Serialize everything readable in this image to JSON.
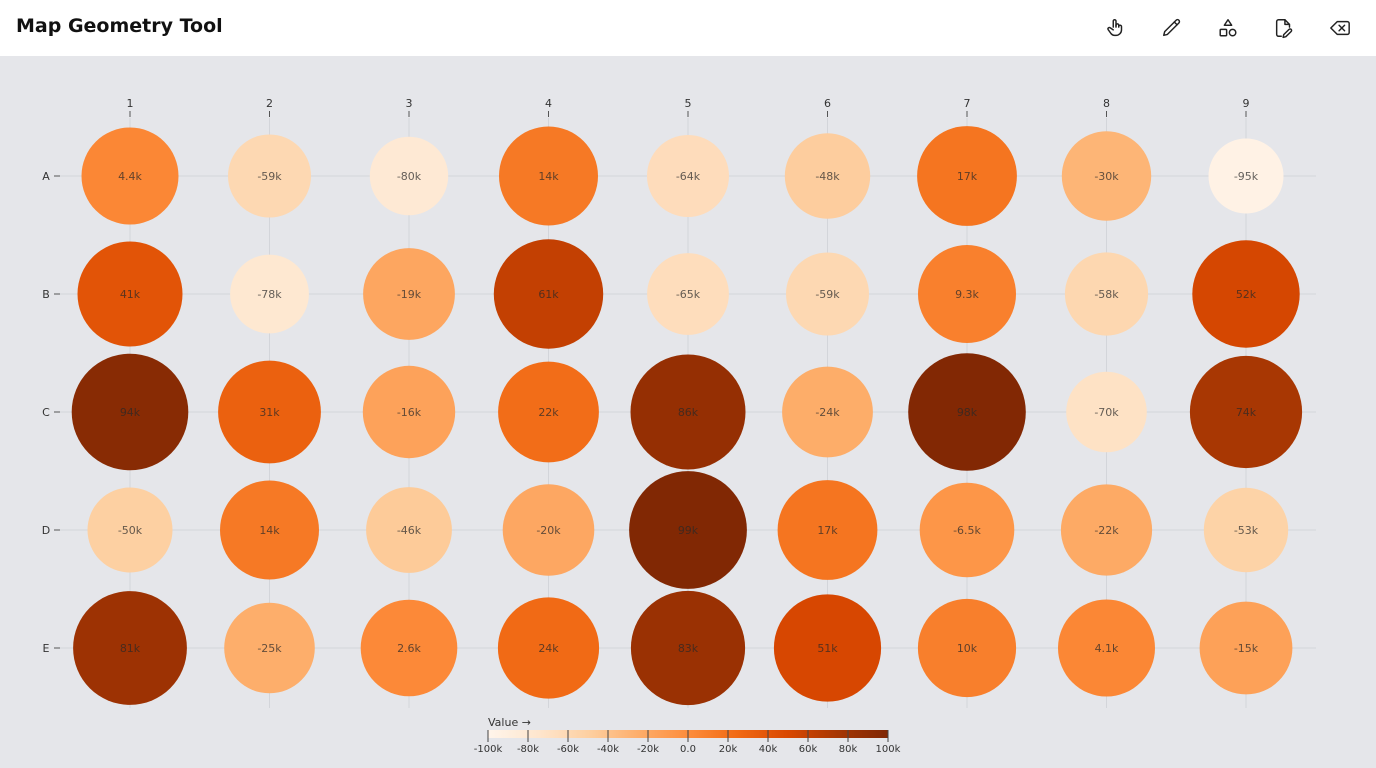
{
  "app": {
    "title": "Map Geometry Tool"
  },
  "toolbar": {
    "tools": [
      {
        "name": "pan-tool-button",
        "icon": "hand-pointer-icon"
      },
      {
        "name": "draw-tool-button",
        "icon": "pencil-icon"
      },
      {
        "name": "shapes-tool-button",
        "icon": "shapes-icon"
      },
      {
        "name": "export-tool-button",
        "icon": "file-edit-icon"
      },
      {
        "name": "clear-tool-button",
        "icon": "backspace-icon"
      }
    ]
  },
  "chart_data": {
    "type": "heatmap",
    "columns": [
      "1",
      "2",
      "3",
      "4",
      "5",
      "6",
      "7",
      "8",
      "9"
    ],
    "rows": [
      "A",
      "B",
      "C",
      "D",
      "E"
    ],
    "values": [
      [
        4400,
        -59000,
        -80000,
        14000,
        -64000,
        -48000,
        17000,
        -30000,
        -95000
      ],
      [
        41000,
        -78000,
        -19000,
        61000,
        -65000,
        -59000,
        9300,
        -58000,
        52000
      ],
      [
        94000,
        31000,
        -16000,
        22000,
        86000,
        -24000,
        98000,
        -70000,
        74000
      ],
      [
        -50000,
        14000,
        -46000,
        -20000,
        99000,
        17000,
        -6500,
        -22000,
        -53000
      ],
      [
        81000,
        -25000,
        2600,
        24000,
        83000,
        51000,
        10000,
        4100,
        -15000
      ]
    ],
    "labels": [
      [
        "4.4k",
        "-59k",
        "-80k",
        "14k",
        "-64k",
        "-48k",
        "17k",
        "-30k",
        "-95k"
      ],
      [
        "41k",
        "-78k",
        "-19k",
        "61k",
        "-65k",
        "-59k",
        "9.3k",
        "-58k",
        "52k"
      ],
      [
        "94k",
        "31k",
        "-16k",
        "22k",
        "86k",
        "-24k",
        "98k",
        "-70k",
        "74k"
      ],
      [
        "-50k",
        "14k",
        "-46k",
        "-20k",
        "99k",
        "17k",
        "-6.5k",
        "-22k",
        "-53k"
      ],
      [
        "81k",
        "-25k",
        "2.6k",
        "24k",
        "83k",
        "51k",
        "10k",
        "4.1k",
        "-15k"
      ]
    ],
    "legend": {
      "title": "Value →",
      "domain": [
        -100000,
        100000
      ],
      "ticks": [
        "-100k",
        "-80k",
        "-60k",
        "-40k",
        "-20k",
        "0.0",
        "20k",
        "40k",
        "60k",
        "80k",
        "100k"
      ],
      "colors": [
        "#fff5eb",
        "#fee6ce",
        "#fdd0a2",
        "#fdae6b",
        "#fd8d3c",
        "#f16913",
        "#d94801",
        "#a63603",
        "#7f2704"
      ]
    },
    "grid": true
  }
}
